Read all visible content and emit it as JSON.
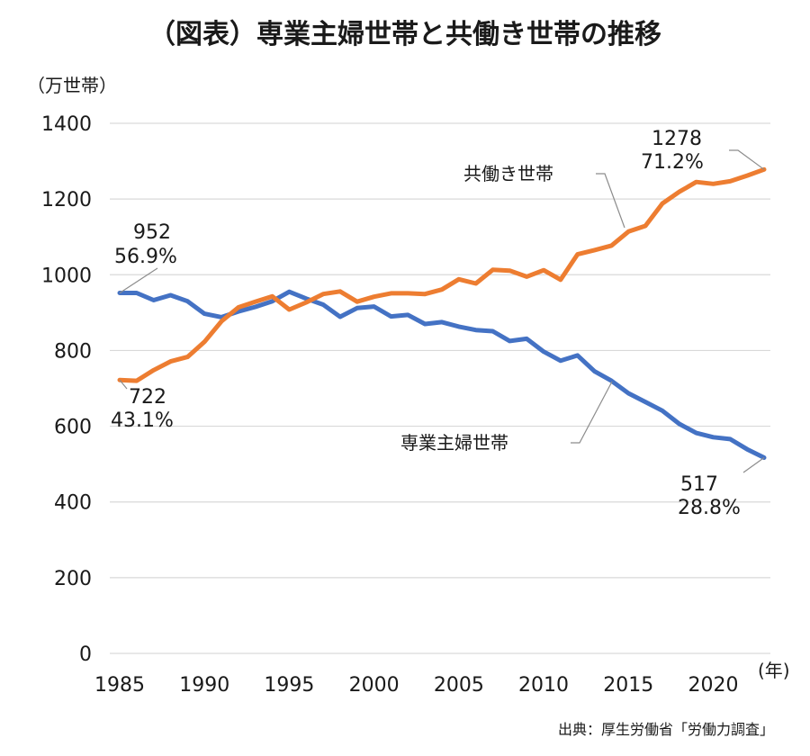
{
  "chart_data": {
    "type": "line",
    "title": "（図表）専業主婦世帯と共働き世帯の推移",
    "ylabel": "（万世帯）",
    "xlabel": "(年)",
    "ylim": [
      0,
      1400
    ],
    "xlim": [
      1985,
      2023
    ],
    "yticks": [
      0,
      200,
      400,
      600,
      800,
      1000,
      1200,
      1400
    ],
    "xticks": [
      1985,
      1990,
      1995,
      2000,
      2005,
      2010,
      2015,
      2020
    ],
    "grid": true,
    "x": [
      1985,
      1986,
      1987,
      1988,
      1989,
      1990,
      1991,
      1992,
      1993,
      1994,
      1995,
      1996,
      1997,
      1998,
      1999,
      2000,
      2001,
      2002,
      2003,
      2004,
      2005,
      2006,
      2007,
      2008,
      2009,
      2010,
      2011,
      2012,
      2013,
      2014,
      2015,
      2016,
      2017,
      2018,
      2019,
      2020,
      2021,
      2022,
      2023
    ],
    "series": [
      {
        "name": "専業主婦世帯",
        "color": "#4472c4",
        "values": [
          952,
          952,
          933,
          946,
          930,
          897,
          888,
          903,
          915,
          930,
          955,
          937,
          921,
          889,
          912,
          916,
          890,
          894,
          870,
          875,
          863,
          854,
          851,
          825,
          831,
          797,
          773,
          787,
          745,
          720,
          687,
          664,
          641,
          606,
          582,
          571,
          566,
          539,
          517
        ],
        "start_label": [
          "952",
          "56.9%"
        ],
        "end_label": [
          "517",
          "28.8%"
        ]
      },
      {
        "name": "共働き世帯",
        "color": "#ed7d31",
        "values": [
          722,
          720,
          748,
          771,
          783,
          823,
          877,
          914,
          929,
          943,
          908,
          927,
          949,
          956,
          929,
          942,
          951,
          951,
          949,
          961,
          988,
          977,
          1013,
          1011,
          995,
          1012,
          987,
          1054,
          1065,
          1077,
          1114,
          1129,
          1188,
          1219,
          1245,
          1240,
          1247,
          1262,
          1278
        ],
        "start_label": [
          "722",
          "43.1%"
        ],
        "end_label": [
          "1278",
          "71.2%"
        ]
      }
    ],
    "source": "出典：厚生労働省「労働力調査」"
  }
}
